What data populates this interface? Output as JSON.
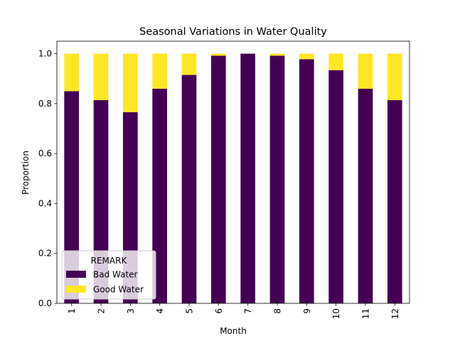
{
  "chart_data": {
    "type": "bar",
    "stacked": true,
    "title": "Seasonal Variations in Water Quality",
    "xlabel": "Month",
    "ylabel": "Proportion",
    "categories": [
      "1",
      "2",
      "3",
      "4",
      "5",
      "6",
      "7",
      "8",
      "9",
      "10",
      "11",
      "12"
    ],
    "series": [
      {
        "name": "Bad Water",
        "color": "#440154",
        "values": [
          0.85,
          0.814,
          0.766,
          0.86,
          0.915,
          0.992,
          1.0,
          0.992,
          0.978,
          0.934,
          0.86,
          0.814
        ]
      },
      {
        "name": "Good Water",
        "color": "#fde725",
        "values": [
          0.15,
          0.186,
          0.234,
          0.14,
          0.085,
          0.008,
          0.0,
          0.008,
          0.022,
          0.066,
          0.14,
          0.186
        ]
      }
    ],
    "ylim": [
      0,
      1.05
    ],
    "yticks": [
      "0.0",
      "0.2",
      "0.4",
      "0.6",
      "0.8",
      "1.0"
    ],
    "grid": false,
    "legend": {
      "title": "REMARK",
      "placement": "lower-left"
    }
  }
}
